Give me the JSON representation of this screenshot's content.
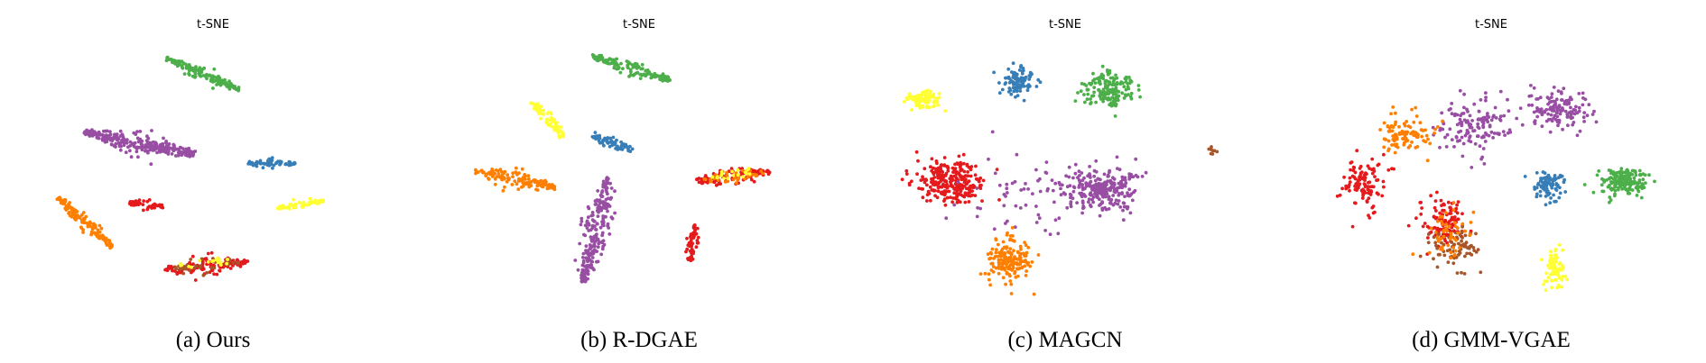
{
  "palette": {
    "red": "#e41a1c",
    "blue": "#377eb8",
    "green": "#4daf4a",
    "purple": "#984ea3",
    "orange": "#ff7f00",
    "yellow": "#ffff33",
    "brown": "#a65628"
  },
  "chart_data": [
    {
      "type": "scatter",
      "title": "t-SNE",
      "caption": "(a) Ours",
      "xlim": [
        0,
        100
      ],
      "ylim": [
        0,
        100
      ],
      "axes_visible": false,
      "clusters": [
        {
          "color": "green",
          "points": 150,
          "kind": "band",
          "center": [
            47,
            88
          ],
          "length": 25,
          "width": 2.5,
          "angle": -30
        },
        {
          "color": "purple",
          "points": 280,
          "kind": "band",
          "center": [
            28,
            61
          ],
          "length": 34,
          "width": 4.5,
          "angle": -15
        },
        {
          "color": "blue",
          "points": 70,
          "kind": "band",
          "center": [
            67,
            53
          ],
          "length": 15,
          "width": 2,
          "angle": 0
        },
        {
          "color": "yellow",
          "points": 60,
          "kind": "band",
          "center": [
            76,
            37
          ],
          "length": 14,
          "width": 2,
          "angle": 12
        },
        {
          "color": "red",
          "points": 50,
          "kind": "band",
          "center": [
            30,
            37
          ],
          "length": 11,
          "width": 2,
          "angle": -8
        },
        {
          "color": "orange",
          "points": 140,
          "kind": "band",
          "center": [
            12,
            30
          ],
          "length": 25,
          "width": 3,
          "angle": -50
        },
        {
          "color": "red",
          "points": 140,
          "kind": "band",
          "center": [
            48,
            13
          ],
          "length": 25,
          "width": 3.5,
          "angle": 8
        },
        {
          "color": "brown",
          "points": 40,
          "kind": "band",
          "center": [
            48,
            13
          ],
          "length": 20,
          "width": 3,
          "angle": 8
        },
        {
          "color": "yellow",
          "points": 20,
          "kind": "band",
          "center": [
            48,
            14
          ],
          "length": 18,
          "width": 3,
          "angle": 8
        }
      ]
    },
    {
      "type": "scatter",
      "title": "t-SNE",
      "caption": "(b) R-DGAE",
      "xlim": [
        0,
        100
      ],
      "ylim": [
        0,
        100
      ],
      "axes_visible": false,
      "clusters": [
        {
          "color": "green",
          "points": 140,
          "kind": "band",
          "center": [
            48,
            90
          ],
          "length": 26,
          "width": 3,
          "angle": -22
        },
        {
          "color": "yellow",
          "points": 70,
          "kind": "band",
          "center": [
            23,
            70
          ],
          "length": 17,
          "width": 3,
          "angle": -55
        },
        {
          "color": "blue",
          "points": 70,
          "kind": "band",
          "center": [
            42,
            61
          ],
          "length": 14,
          "width": 3,
          "angle": -25
        },
        {
          "color": "orange",
          "points": 140,
          "kind": "band",
          "center": [
            13,
            47
          ],
          "length": 25,
          "width": 4,
          "angle": -15
        },
        {
          "color": "red",
          "points": 110,
          "kind": "band",
          "center": [
            78,
            48
          ],
          "length": 22,
          "width": 4,
          "angle": 10
        },
        {
          "color": "orange",
          "points": 40,
          "kind": "band",
          "center": [
            78,
            48
          ],
          "length": 18,
          "width": 3,
          "angle": 10
        },
        {
          "color": "yellow",
          "points": 20,
          "kind": "band",
          "center": [
            78,
            49
          ],
          "length": 14,
          "width": 3,
          "angle": 10
        },
        {
          "color": "purple",
          "points": 230,
          "kind": "band",
          "center": [
            37,
            27
          ],
          "length": 42,
          "width": 4.5,
          "angle": 80
        },
        {
          "color": "red",
          "points": 60,
          "kind": "band",
          "center": [
            66,
            22
          ],
          "length": 14,
          "width": 2.5,
          "angle": 85
        }
      ]
    },
    {
      "type": "scatter",
      "title": "t-SNE",
      "caption": "(c) MAGCN",
      "xlim": [
        0,
        100
      ],
      "ylim": [
        0,
        100
      ],
      "axes_visible": false,
      "clusters": [
        {
          "color": "yellow",
          "points": 90,
          "kind": "blob",
          "center": [
            8,
            78
          ],
          "rx": 5,
          "ry": 4
        },
        {
          "color": "blue",
          "points": 90,
          "kind": "blob",
          "center": [
            36,
            85
          ],
          "rx": 5,
          "ry": 5
        },
        {
          "color": "green",
          "points": 170,
          "kind": "blob",
          "center": [
            63,
            82
          ],
          "rx": 7.5,
          "ry": 7
        },
        {
          "color": "brown",
          "points": 8,
          "kind": "blob",
          "center": [
            94,
            58
          ],
          "rx": 1,
          "ry": 1.2
        },
        {
          "color": "red",
          "points": 280,
          "kind": "blob",
          "center": [
            16,
            46
          ],
          "rx": 10,
          "ry": 8
        },
        {
          "color": "purple",
          "points": 260,
          "kind": "blob",
          "center": [
            61,
            43
          ],
          "rx": 11,
          "ry": 9
        },
        {
          "color": "purple",
          "points": 60,
          "kind": "blob",
          "center": [
            40,
            40
          ],
          "rx": 20,
          "ry": 14
        },
        {
          "color": "orange",
          "points": 170,
          "kind": "blob",
          "center": [
            33,
            15
          ],
          "rx": 6.5,
          "ry": 8.5
        }
      ]
    },
    {
      "type": "scatter",
      "title": "t-SNE",
      "caption": "(d) GMM-VGAE",
      "xlim": [
        0,
        100
      ],
      "ylim": [
        0,
        100
      ],
      "axes_visible": false,
      "clusters": [
        {
          "color": "purple",
          "points": 140,
          "kind": "blob",
          "center": [
            45,
            68
          ],
          "rx": 10,
          "ry": 12
        },
        {
          "color": "orange",
          "points": 100,
          "kind": "blob",
          "center": [
            24,
            64
          ],
          "rx": 9,
          "ry": 9
        },
        {
          "color": "purple",
          "points": 140,
          "kind": "blob",
          "center": [
            70,
            74
          ],
          "rx": 8,
          "ry": 8
        },
        {
          "color": "green",
          "points": 170,
          "kind": "blob",
          "center": [
            89,
            46
          ],
          "rx": 6.5,
          "ry": 5.5
        },
        {
          "color": "blue",
          "points": 90,
          "kind": "blob",
          "center": [
            67,
            45
          ],
          "rx": 4,
          "ry": 5.5
        },
        {
          "color": "red",
          "points": 110,
          "kind": "blob",
          "center": [
            12,
            45
          ],
          "rx": 6,
          "ry": 10
        },
        {
          "color": "red",
          "points": 110,
          "kind": "blob",
          "center": [
            36,
            30
          ],
          "rx": 6,
          "ry": 9
        },
        {
          "color": "brown",
          "points": 80,
          "kind": "blob",
          "center": [
            40,
            20
          ],
          "rx": 7,
          "ry": 8
        },
        {
          "color": "orange",
          "points": 50,
          "kind": "blob",
          "center": [
            38,
            25
          ],
          "rx": 7,
          "ry": 10
        },
        {
          "color": "yellow",
          "points": 80,
          "kind": "blob",
          "center": [
            69,
            12
          ],
          "rx": 3,
          "ry": 7
        }
      ]
    }
  ]
}
